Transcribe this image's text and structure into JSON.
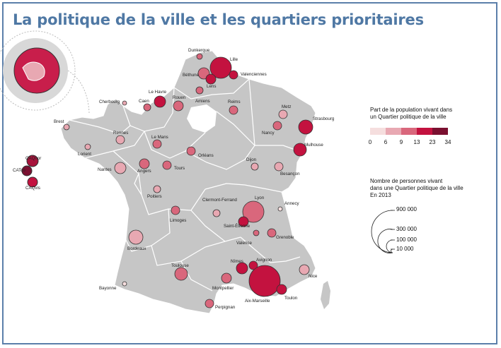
{
  "title": "La politique de la ville et les quartiers prioritaires",
  "legend_color": {
    "title_line1": "Part de la population vivant dans",
    "title_line2": "un Quartier politique de la ville",
    "breaks": [
      "0",
      "6",
      "9",
      "13",
      "23",
      "34"
    ],
    "colors": [
      "#f5dede",
      "#e8a8b2",
      "#d9677c",
      "#c3123f",
      "#7a1030"
    ]
  },
  "legend_size": {
    "title_line1": "Nombre de personnes vivant",
    "title_line2": "dans une Quartier politique de la ville",
    "title_line3": "En 2013",
    "values": [
      "900 000",
      "300 000",
      "100 000",
      "10 000"
    ]
  },
  "cities": {
    "dunkerque": "Dunkerque",
    "lille": "Lille",
    "valenciennes": "Valenciennes",
    "bethune": "Béthune",
    "lens": "Lens",
    "amiens": "Amiens",
    "reims": "Reims",
    "metz": "Metz",
    "strasbourg": "Strasbourg",
    "nancy": "Nancy",
    "mulhouse": "Mulhouse",
    "le_havre": "Le Havre",
    "caen": "Caen",
    "rouen": "Rouen",
    "cherbourg": "Cherbourg",
    "brest": "Brest",
    "rennes": "Rennes",
    "le_mans": "Le Mans",
    "lorient": "Lorient",
    "nantes": "Nantes",
    "angers": "Angers",
    "tours": "Tours",
    "orleans": "Orléans",
    "dijon": "Dijon",
    "besancon": "Besançon",
    "poitiers": "Poitiers",
    "limoges": "Limoges",
    "clermont_ferrand": "Clermont-Ferrand",
    "lyon": "Lyon",
    "annecy": "Annecy",
    "saint_etienne": "Saint-Étienne",
    "grenoble": "Grenoble",
    "valence": "Valence",
    "bordeaux": "Bordeaux",
    "toulouse": "Toulouse",
    "bayonne": "Bayonne",
    "nimes": "Nîmes",
    "avignon": "Avignon",
    "montpellier": "Montpellier",
    "perpignan": "Perpignan",
    "aix_marseille": "Aix-Marseille",
    "toulon": "Toulon",
    "nice": "Nice",
    "ca_qnor": "CAQnor",
    "ca_tco": "CATco",
    "ca_qvis": "CAQvis"
  }
}
